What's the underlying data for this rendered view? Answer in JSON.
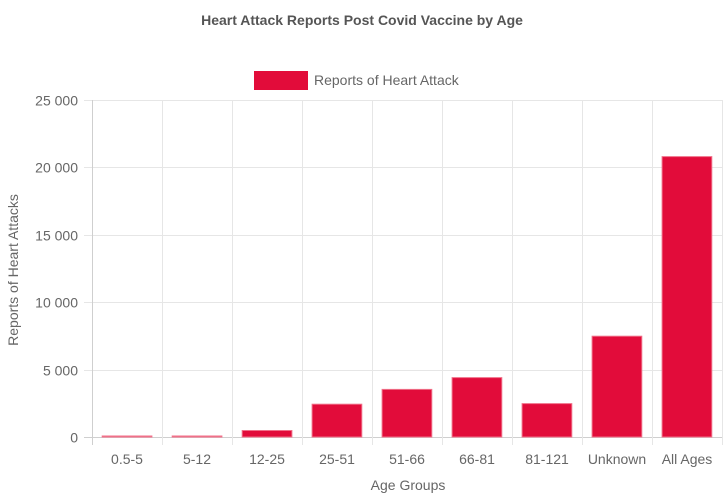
{
  "chart_data": {
    "type": "bar",
    "title": "Heart Attack Reports Post Covid Vaccine by Age",
    "xlabel": "Age Groups",
    "ylabel": "Reports of Heart Attacks",
    "categories": [
      "0.5-5",
      "5-12",
      "12-25",
      "25-51",
      "51-66",
      "66-81",
      "81-121",
      "Unknown",
      "All Ages"
    ],
    "series": [
      {
        "name": "Reports of Heart Attack",
        "values": [
          60,
          20,
          480,
          2430,
          3530,
          4410,
          2480,
          7480,
          20800
        ],
        "color": "#e20c3a"
      }
    ],
    "ylim": [
      0,
      25000
    ],
    "yticks": [
      "25 000",
      "20 000",
      "15 000",
      "10 000",
      "5 000",
      "0"
    ],
    "ytick_values": [
      25000,
      20000,
      15000,
      10000,
      5000,
      0
    ],
    "grid": true,
    "legend_position": "top"
  }
}
